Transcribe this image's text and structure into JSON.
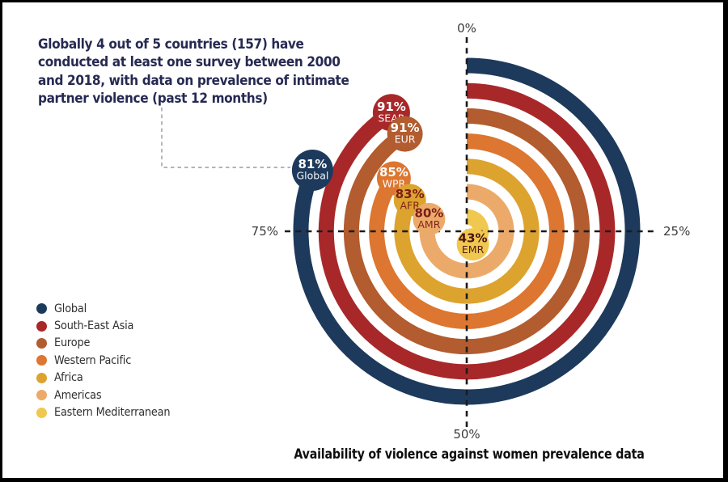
{
  "headline": {
    "lines": [
      "Globally 4 out of 5 countries (157) have",
      "conducted at least one survey between 2000",
      "and 2018, with data on prevalence of intimate",
      "partner violence (past 12 months)"
    ],
    "color": "#262a52"
  },
  "chart_data": {
    "type": "radial-bar",
    "title": "Availability of violence against women prevalence data",
    "unit": "%",
    "scale": {
      "min": 0,
      "max": 100,
      "direction": "clockwise-from-top"
    },
    "axis_ticks": [
      {
        "label": "0%",
        "position": "top"
      },
      {
        "label": "25%",
        "position": "right"
      },
      {
        "label": "50%",
        "position": "bottom"
      },
      {
        "label": "75%",
        "position": "left"
      }
    ],
    "series": [
      {
        "name": "Global",
        "code": "Global",
        "value": 81,
        "color": "#1d3a5c",
        "label_color": "#ffffff"
      },
      {
        "name": "South-East Asia",
        "code": "SEAR",
        "value": 91,
        "color": "#a8282a",
        "label_color": "#ffffff"
      },
      {
        "name": "Europe",
        "code": "EUR",
        "value": 91,
        "color": "#b25c2f",
        "label_color": "#ffffff"
      },
      {
        "name": "Western Pacific",
        "code": "WPR",
        "value": 85,
        "color": "#dc7630",
        "label_color": "#ffffff"
      },
      {
        "name": "Africa",
        "code": "AFR",
        "value": 83,
        "color": "#dda32f",
        "label_color": "#7b1d15"
      },
      {
        "name": "Americas",
        "code": "AMR",
        "value": 80,
        "color": "#ecaa6a",
        "label_color": "#7b1d15"
      },
      {
        "name": "Eastern Mediterranean",
        "code": "EMR",
        "value": 43,
        "color": "#f0c850",
        "label_color": "#4a1410"
      }
    ],
    "legend_position": "bottom-left",
    "annotation_callout": "connects headline to Global bubble"
  }
}
